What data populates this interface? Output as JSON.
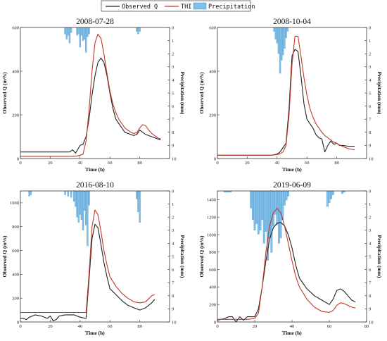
{
  "legend": {
    "observed": "Observed Q",
    "simulated": "THI",
    "precip": "Precipitation"
  },
  "colors": {
    "observed": "#222222",
    "simulated": "#c0392b",
    "precip": "#7fbfe8",
    "precip_edge": "#4a90c8"
  },
  "chart_data": [
    {
      "type": "line",
      "title": "2008-07-28",
      "xlabel": "Time (h)",
      "ylabel": "Observed Q (m³/s)",
      "y2label": "Precipitation (mm)",
      "xlim": [
        0,
        100
      ],
      "xticks": [
        0,
        20,
        40,
        60,
        80
      ],
      "ylim": [
        0,
        600
      ],
      "yticks": [
        0,
        200,
        400,
        600
      ],
      "y2lim": [
        0,
        10
      ],
      "y2ticks": [
        0,
        1,
        2,
        3,
        4,
        5,
        6,
        7,
        8,
        9,
        10
      ],
      "series": [
        {
          "name": "Observed Q",
          "x": [
            0,
            2,
            10,
            20,
            30,
            33,
            35,
            37,
            40,
            42,
            44,
            46,
            48,
            50,
            52,
            54,
            56,
            58,
            60,
            62,
            64,
            66,
            68,
            70,
            72,
            74,
            76,
            78,
            80,
            82,
            84,
            86,
            88,
            90,
            92,
            94
          ],
          "y": [
            30,
            30,
            30,
            30,
            30,
            30,
            40,
            25,
            60,
            65,
            100,
            180,
            290,
            380,
            440,
            460,
            440,
            380,
            300,
            230,
            180,
            160,
            140,
            120,
            115,
            110,
            105,
            110,
            130,
            120,
            110,
            105,
            100,
            95,
            90,
            85
          ]
        },
        {
          "name": "THI",
          "x": [
            0,
            10,
            20,
            30,
            35,
            38,
            40,
            42,
            44,
            46,
            48,
            50,
            52,
            54,
            56,
            58,
            60,
            62,
            64,
            66,
            68,
            70,
            72,
            74,
            76,
            78,
            80,
            82,
            84,
            86,
            88,
            90,
            92,
            94
          ],
          "y": [
            10,
            10,
            10,
            10,
            10,
            12,
            15,
            20,
            80,
            220,
            400,
            530,
            570,
            550,
            480,
            390,
            310,
            250,
            210,
            180,
            160,
            140,
            130,
            120,
            115,
            118,
            140,
            155,
            150,
            130,
            115,
            105,
            95,
            90
          ]
        }
      ],
      "precipitation": {
        "x": [
          30,
          31,
          32,
          33,
          34,
          38,
          39,
          40,
          41,
          42,
          43,
          44,
          45,
          46,
          78,
          79,
          80
        ],
        "values": [
          0.5,
          0.9,
          0.6,
          1.2,
          0.4,
          0.6,
          0.5,
          1.5,
          0.6,
          1.0,
          0.9,
          1.9,
          0.7,
          0.5,
          0.3,
          0.5,
          0.3
        ]
      }
    },
    {
      "type": "line",
      "title": "2008-10-04",
      "xlabel": "Time (h)",
      "ylabel": "Observed Q (m³/s)",
      "y2label": "Precipitation (mm)",
      "xlim": [
        0,
        100
      ],
      "xticks": [
        0,
        20,
        40,
        60,
        80
      ],
      "ylim": [
        0,
        600
      ],
      "yticks": [
        0,
        200,
        400,
        600
      ],
      "y2lim": [
        0,
        10
      ],
      "y2ticks": [
        0,
        1,
        2,
        3,
        4,
        5,
        6,
        7,
        8,
        9,
        10
      ],
      "series": [
        {
          "name": "Observed Q",
          "x": [
            0,
            10,
            20,
            30,
            36,
            40,
            42,
            44,
            46,
            48,
            50,
            52,
            54,
            56,
            58,
            60,
            62,
            64,
            66,
            68,
            70,
            72,
            74,
            76,
            78,
            80,
            82,
            84,
            86,
            88,
            90,
            92
          ],
          "y": [
            15,
            15,
            15,
            15,
            15,
            20,
            30,
            50,
            70,
            230,
            470,
            500,
            490,
            380,
            250,
            180,
            160,
            140,
            110,
            95,
            90,
            30,
            60,
            80,
            65,
            70,
            60,
            60,
            58,
            56,
            56,
            56
          ]
        },
        {
          "name": "THI",
          "x": [
            0,
            10,
            20,
            30,
            36,
            40,
            42,
            44,
            46,
            48,
            50,
            52,
            54,
            56,
            58,
            60,
            62,
            64,
            66,
            68,
            70,
            72,
            74,
            76,
            78,
            80,
            82,
            84,
            86,
            88,
            90,
            92
          ],
          "y": [
            15,
            15,
            15,
            15,
            15,
            18,
            22,
            30,
            60,
            200,
            430,
            560,
            560,
            470,
            370,
            290,
            230,
            190,
            160,
            140,
            120,
            105,
            95,
            85,
            75,
            70,
            62,
            55,
            50,
            45,
            42,
            40
          ]
        }
      ],
      "precipitation": {
        "x": [
          38,
          39,
          40,
          41,
          42,
          43,
          44,
          45,
          46,
          47
        ],
        "values": [
          0.3,
          0.9,
          1.2,
          2.0,
          3.5,
          2.5,
          2.1,
          1.6,
          0.8,
          0.3
        ]
      }
    },
    {
      "type": "line",
      "title": "2016-08-10",
      "xlabel": "Time (h)",
      "ylabel": "Observed Q (m³/s)",
      "y2label": "Precipitation (mm)",
      "xlim": [
        0,
        100
      ],
      "xticks": [
        0,
        20,
        40,
        60,
        80
      ],
      "ylim": [
        0,
        1100
      ],
      "yticks": [
        0,
        200,
        400,
        600,
        800,
        1000
      ],
      "y2lim": [
        0,
        10
      ],
      "y2ticks": [
        0,
        1,
        2,
        3,
        4,
        5,
        6,
        7,
        8,
        9,
        10
      ],
      "series": [
        {
          "name": "Observed Q",
          "x": [
            0,
            2,
            4,
            6,
            10,
            14,
            18,
            20,
            22,
            24,
            26,
            30,
            36,
            40,
            44,
            46,
            48,
            50,
            52,
            54,
            56,
            58,
            60,
            64,
            68,
            72,
            76,
            80,
            84,
            88,
            90
          ],
          "y": [
            30,
            30,
            20,
            40,
            60,
            50,
            30,
            50,
            10,
            20,
            50,
            60,
            60,
            40,
            30,
            350,
            700,
            820,
            790,
            650,
            500,
            380,
            280,
            230,
            180,
            140,
            120,
            100,
            120,
            160,
            190
          ]
        },
        {
          "name": "THI",
          "x": [
            0,
            10,
            20,
            30,
            40,
            44,
            46,
            48,
            50,
            52,
            54,
            56,
            58,
            60,
            64,
            68,
            72,
            76,
            80,
            84,
            88,
            90
          ],
          "y": [
            80,
            80,
            80,
            80,
            80,
            80,
            400,
            800,
            940,
            900,
            760,
            600,
            480,
            380,
            300,
            240,
            200,
            170,
            160,
            170,
            220,
            230
          ]
        }
      ],
      "precipitation": {
        "x": [
          6,
          7,
          30,
          32,
          34,
          36,
          37,
          38,
          39,
          40,
          41,
          42,
          43,
          44,
          45,
          46,
          78,
          79,
          80
        ],
        "values": [
          0.4,
          0.3,
          0.3,
          0.4,
          0.5,
          0.8,
          1.2,
          2.0,
          2.4,
          1.8,
          2.2,
          3.0,
          1.5,
          2.6,
          4.2,
          1.1,
          0.6,
          1.6,
          2.4
        ]
      }
    },
    {
      "type": "line",
      "title": "2019-06-09",
      "xlabel": "Time (h)",
      "ylabel": "Observed Q (m³/s)",
      "y2label": "Precipitation (mm)",
      "xlim": [
        0,
        80
      ],
      "xticks": [
        0,
        20,
        40,
        60,
        80
      ],
      "ylim": [
        0,
        1500
      ],
      "yticks": [
        0,
        200,
        400,
        600,
        800,
        1000,
        1200,
        1400
      ],
      "y2lim": [
        0,
        10
      ],
      "y2ticks": [
        0,
        1,
        2,
        3,
        4,
        5,
        6,
        7,
        8,
        9,
        10
      ],
      "series": [
        {
          "name": "Observed Q",
          "x": [
            0,
            4,
            6,
            8,
            10,
            12,
            14,
            16,
            20,
            22,
            24,
            26,
            28,
            30,
            32,
            34,
            36,
            38,
            40,
            42,
            44,
            48,
            52,
            56,
            60,
            62,
            64,
            66,
            68,
            70,
            72,
            74
          ],
          "y": [
            20,
            40,
            60,
            60,
            0,
            60,
            20,
            60,
            60,
            150,
            400,
            700,
            950,
            1080,
            1130,
            1140,
            1100,
            1000,
            850,
            650,
            500,
            380,
            300,
            250,
            200,
            260,
            360,
            380,
            350,
            300,
            250,
            230
          ]
        },
        {
          "name": "THI",
          "x": [
            0,
            10,
            16,
            20,
            22,
            24,
            26,
            28,
            30,
            32,
            34,
            36,
            38,
            40,
            42,
            44,
            48,
            52,
            56,
            60,
            62,
            64,
            66,
            68,
            70,
            72,
            74
          ],
          "y": [
            30,
            30,
            30,
            40,
            100,
            400,
            800,
            1100,
            1250,
            1300,
            1250,
            1100,
            900,
            700,
            520,
            400,
            260,
            170,
            120,
            110,
            130,
            190,
            220,
            210,
            190,
            170,
            160
          ]
        }
      ],
      "precipitation": {
        "x": [
          4,
          5,
          6,
          7,
          18,
          19,
          20,
          21,
          22,
          23,
          24,
          25,
          26,
          27,
          28,
          29,
          30,
          31,
          32,
          33,
          34,
          35,
          36,
          37,
          38,
          59,
          60,
          61,
          62,
          67,
          68
        ],
        "values": [
          0.1,
          0.1,
          0.1,
          0.1,
          1.3,
          2.2,
          3.0,
          2.5,
          3.3,
          3.0,
          2.2,
          4.0,
          3.1,
          5.3,
          3.6,
          4.7,
          2.7,
          1.8,
          2.6,
          4.0,
          3.6,
          2.2,
          1.1,
          0.7,
          0.4,
          1.2,
          0.9,
          0.6,
          0.3,
          0.2,
          0.1
        ]
      }
    }
  ]
}
